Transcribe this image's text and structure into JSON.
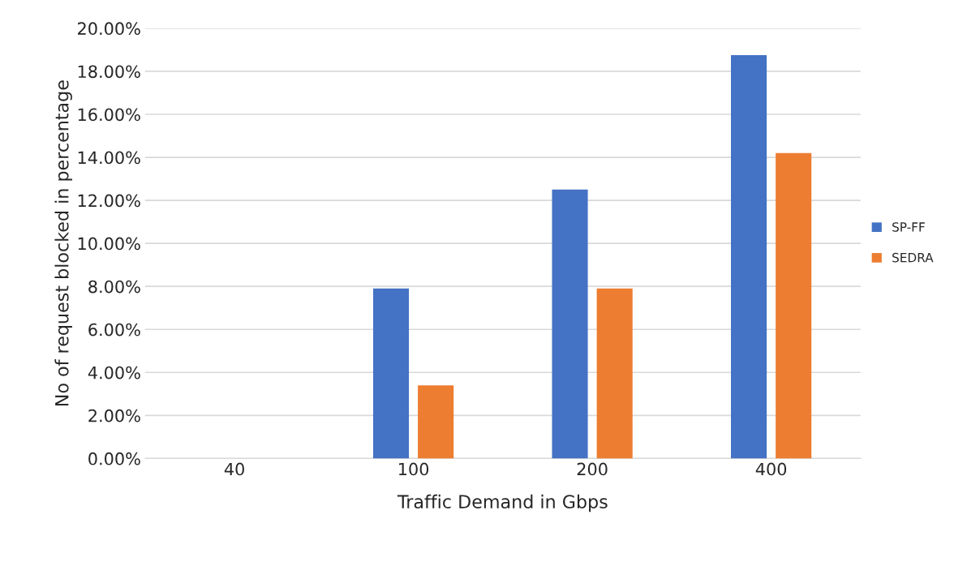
{
  "chart_data": {
    "type": "bar",
    "xlabel": "Traffic Demand in Gbps",
    "ylabel": "No of request blocked in percentage",
    "categories": [
      "40",
      "100",
      "200",
      "400"
    ],
    "series": [
      {
        "name": "SP-FF",
        "color": "#4472c4",
        "values": [
          null,
          7.9,
          12.5,
          18.75
        ]
      },
      {
        "name": "SEDRA",
        "color": "#ed7d31",
        "values": [
          null,
          3.4,
          7.9,
          14.2
        ]
      }
    ],
    "ylim": [
      0,
      20
    ],
    "yticks": [
      {
        "value": 0,
        "label": "0.00%"
      },
      {
        "value": 2,
        "label": "2.00%"
      },
      {
        "value": 4,
        "label": "4.00%"
      },
      {
        "value": 6,
        "label": "6.00%"
      },
      {
        "value": 8,
        "label": "8.00%"
      },
      {
        "value": 10,
        "label": "10.00%"
      },
      {
        "value": 12,
        "label": "12.00%"
      },
      {
        "value": 14,
        "label": "14.00%"
      },
      {
        "value": 16,
        "label": "16.00%"
      },
      {
        "value": 18,
        "label": "18.00%"
      },
      {
        "value": 20,
        "label": "20.00%"
      }
    ],
    "grid": "y",
    "legend": "right"
  }
}
